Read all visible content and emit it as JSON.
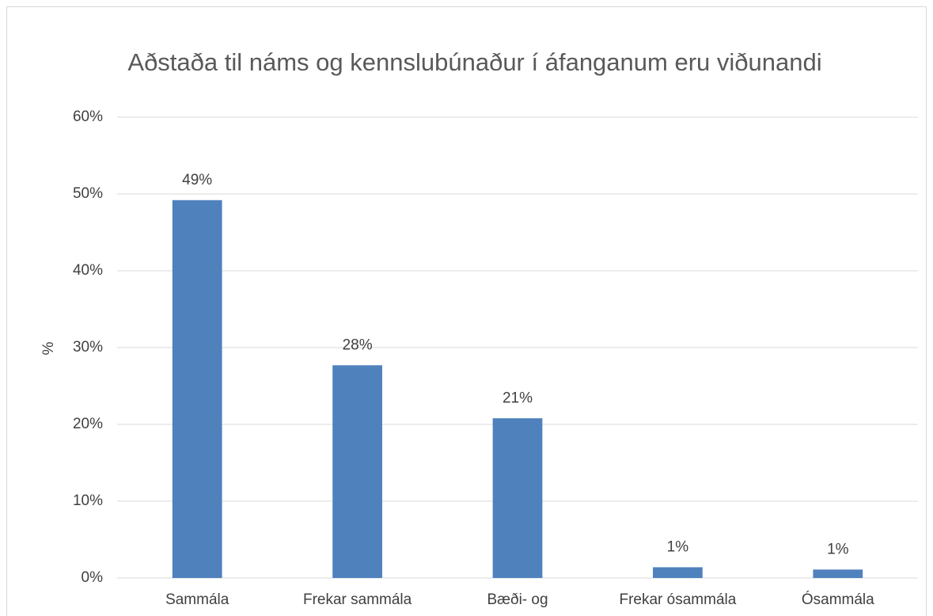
{
  "chart_data": {
    "type": "bar",
    "title": "Aðstaða til náms og kennslubúnaður í áfanganum eru viðunandi",
    "y_label": "%",
    "categories": [
      "Sammála",
      "Frekar sammála",
      "Bæði- og",
      "Frekar ósammála",
      "Ósammála"
    ],
    "values": [
      49.2,
      27.7,
      20.8,
      1.4,
      1.1
    ],
    "value_labels": [
      "49%",
      "28%",
      "21%",
      "1%",
      "1%"
    ],
    "color": "#4f81bd",
    "ylim": [
      0,
      60
    ],
    "yticks": [
      {
        "value": 0,
        "label": "0%"
      },
      {
        "value": 10,
        "label": "10%"
      },
      {
        "value": 20,
        "label": "20%"
      },
      {
        "value": 30,
        "label": "30%"
      },
      {
        "value": 40,
        "label": "40%"
      },
      {
        "value": 50,
        "label": "50%"
      },
      {
        "value": 60,
        "label": "60%"
      }
    ],
    "grid": true
  }
}
